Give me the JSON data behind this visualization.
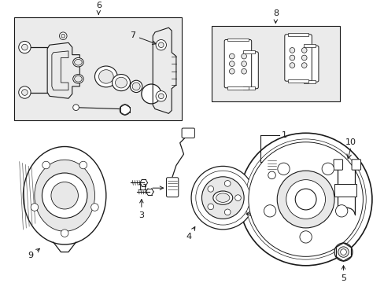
{
  "bg_color": "#ffffff",
  "line_color": "#1a1a1a",
  "gray_fill": "#d8d8d8",
  "light_gray": "#e8e8e8",
  "box_gray": "#ebebeb",
  "figsize": [
    4.89,
    3.6
  ],
  "dpi": 100
}
